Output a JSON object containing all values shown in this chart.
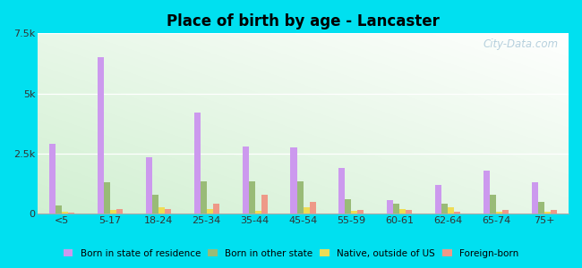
{
  "title": "Place of birth by age - Lancaster",
  "categories": [
    "<5",
    "5-17",
    "18-24",
    "25-34",
    "35-44",
    "45-54",
    "55-59",
    "60-61",
    "62-64",
    "65-74",
    "75+"
  ],
  "series": {
    "Born in state of residence": [
      2900,
      6500,
      2350,
      4200,
      2800,
      2750,
      1900,
      550,
      1200,
      1800,
      1300
    ],
    "Born in other state": [
      350,
      1300,
      800,
      1350,
      1350,
      1350,
      600,
      400,
      400,
      800,
      500
    ],
    "Native, outside of US": [
      80,
      150,
      250,
      180,
      120,
      250,
      120,
      200,
      280,
      80,
      80
    ],
    "Foreign-born": [
      40,
      200,
      200,
      400,
      800,
      500,
      160,
      160,
      80,
      160,
      160
    ]
  },
  "colors": {
    "Born in state of residence": "#cc99ee",
    "Born in other state": "#99bb77",
    "Native, outside of US": "#eedd55",
    "Foreign-born": "#ee9988"
  },
  "ylim": [
    0,
    7500
  ],
  "yticks": [
    0,
    2500,
    5000,
    7500
  ],
  "ytick_labels": [
    "0",
    "2.5k",
    "5k",
    "7.5k"
  ],
  "background_color": "#00e0f0",
  "bar_width": 0.13,
  "legend_items": [
    "Born in state of residence",
    "Born in other state",
    "Native, outside of US",
    "Foreign-born"
  ],
  "watermark": "City-Data.com"
}
